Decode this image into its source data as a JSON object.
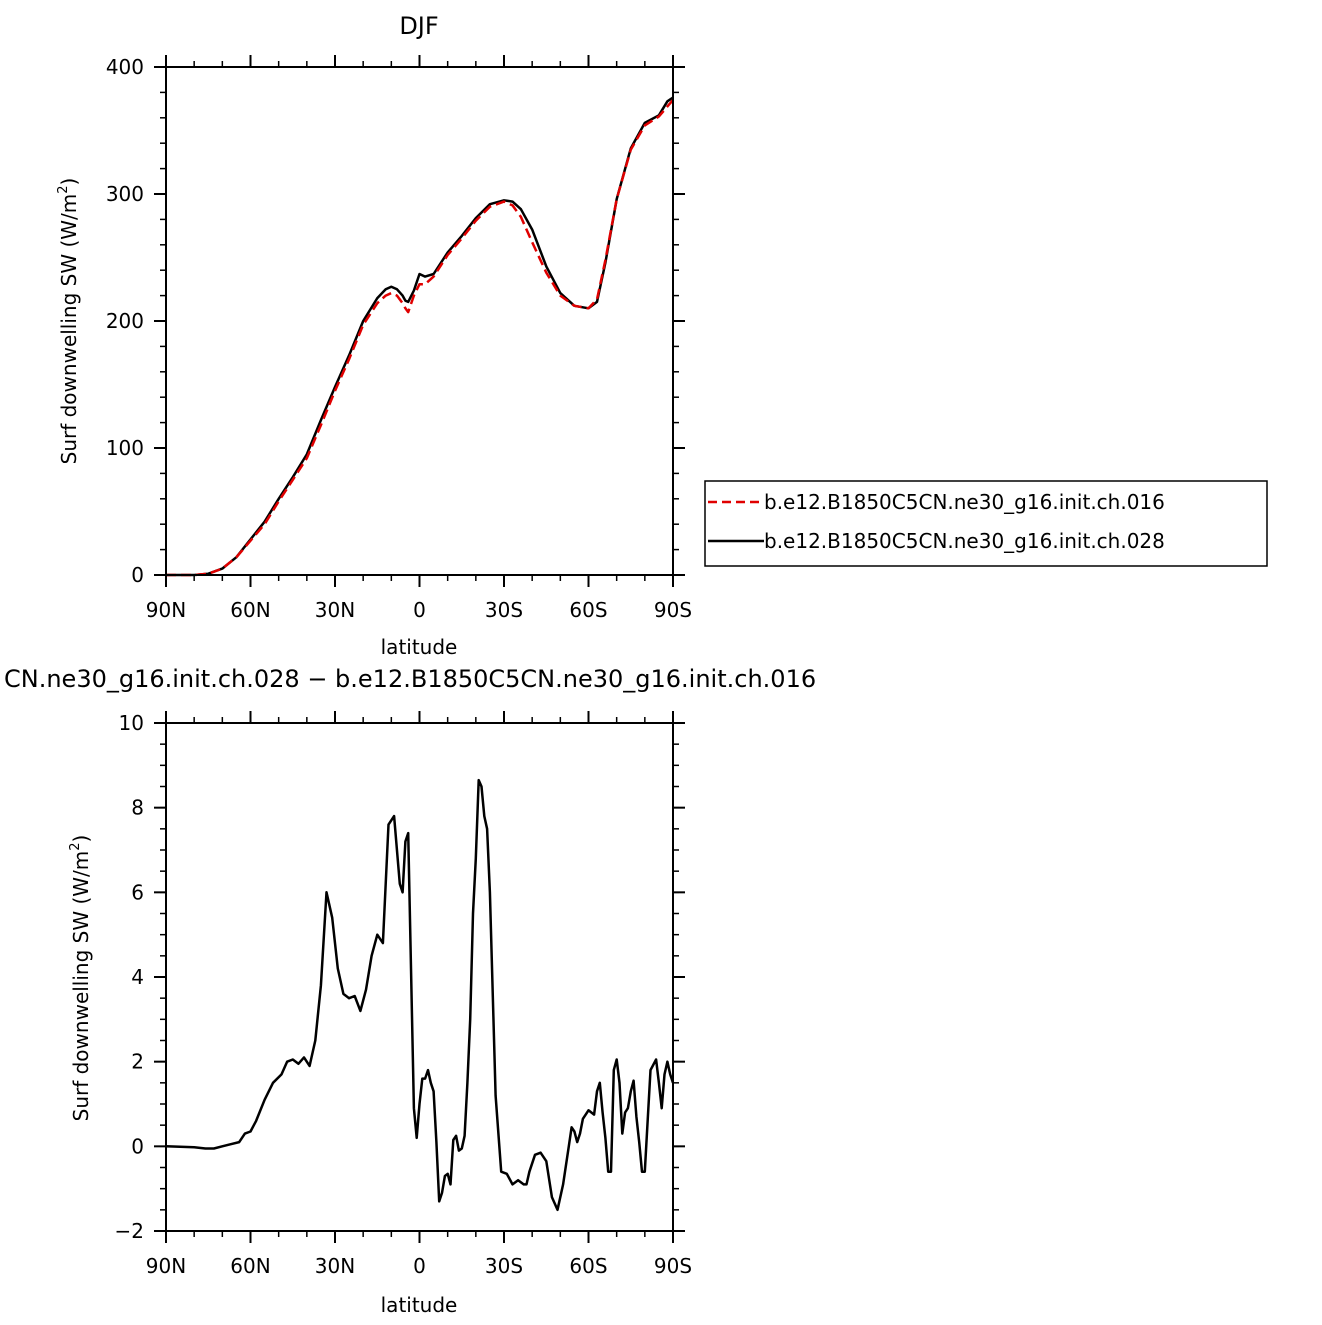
{
  "chart_data": [
    {
      "type": "line",
      "title": "DJF",
      "xlabel": "latitude",
      "ylabel_main": "Surf downwelling SW (W/m",
      "ylabel_sup": "2",
      "ylabel_tail": ")",
      "xticks": [
        {
          "lat": 90,
          "label": "90N"
        },
        {
          "lat": 60,
          "label": "60N"
        },
        {
          "lat": 30,
          "label": "30N"
        },
        {
          "lat": 0,
          "label": "0"
        },
        {
          "lat": -30,
          "label": "30S"
        },
        {
          "lat": -60,
          "label": "60S"
        },
        {
          "lat": -90,
          "label": "90S"
        }
      ],
      "xlim": [
        90,
        -90
      ],
      "ylim": [
        0,
        400
      ],
      "yticks": [
        0,
        100,
        200,
        300,
        400
      ],
      "legend_position": "right",
      "series": [
        {
          "name": "b.e12.B1850C5CN.ne30_g16.init.ch.016",
          "color": "#e00000",
          "dash": "dashed",
          "x": [
            90,
            85,
            80,
            75,
            70,
            65,
            60,
            55,
            50,
            45,
            40,
            35,
            30,
            25,
            20,
            15,
            12,
            10,
            8,
            6,
            5,
            4,
            2,
            0,
            -2,
            -5,
            -10,
            -15,
            -20,
            -25,
            -30,
            -33,
            -36,
            -40,
            -45,
            -50,
            -55,
            -60,
            -63,
            -66,
            -70,
            -75,
            -80,
            -85,
            -88,
            -90
          ],
          "y": [
            0,
            0,
            0,
            1,
            5,
            14,
            27,
            40,
            58,
            75,
            92,
            118,
            145,
            170,
            197,
            214,
            220,
            222,
            220,
            214,
            210,
            207,
            220,
            229,
            229,
            235,
            252,
            265,
            279,
            290,
            294,
            291,
            282,
            262,
            238,
            220,
            212,
            210,
            217,
            248,
            296,
            335,
            354,
            361,
            369,
            374
          ]
        },
        {
          "name": "b.e12.B1850C5CN.ne30_g16.init.ch.028",
          "color": "#000000",
          "dash": "solid",
          "x": [
            90,
            85,
            80,
            75,
            70,
            65,
            60,
            55,
            50,
            45,
            40,
            35,
            30,
            25,
            20,
            15,
            12,
            10,
            8,
            6,
            5,
            4,
            2,
            0,
            -2,
            -5,
            -10,
            -15,
            -20,
            -25,
            -30,
            -33,
            -36,
            -40,
            -45,
            -50,
            -55,
            -60,
            -63,
            -66,
            -70,
            -75,
            -80,
            -85,
            -88,
            -90
          ],
          "y": [
            0,
            0,
            0,
            1,
            5,
            14,
            28,
            42,
            60,
            77,
            95,
            122,
            148,
            173,
            200,
            218,
            225,
            227,
            225,
            220,
            216,
            215,
            224,
            237,
            235,
            237,
            254,
            267,
            281,
            292,
            295,
            294,
            288,
            272,
            243,
            222,
            212,
            210,
            215,
            246,
            296,
            336,
            356,
            362,
            373,
            376
          ]
        }
      ]
    },
    {
      "type": "line",
      "title": "CN.ne30_g16.init.ch.028 − b.e12.B1850C5CN.ne30_g16.init.ch.016",
      "xlabel": "latitude",
      "ylabel_main": "Surf downwelling SW (W/m",
      "ylabel_sup": "2",
      "ylabel_tail": ")",
      "xticks": [
        {
          "lat": 90,
          "label": "90N"
        },
        {
          "lat": 60,
          "label": "60N"
        },
        {
          "lat": 30,
          "label": "30N"
        },
        {
          "lat": 0,
          "label": "0"
        },
        {
          "lat": -30,
          "label": "30S"
        },
        {
          "lat": -60,
          "label": "60S"
        },
        {
          "lat": -90,
          "label": "90S"
        }
      ],
      "xlim": [
        90,
        -90
      ],
      "ylim": [
        -2,
        10
      ],
      "yticks": [
        -2,
        0,
        2,
        4,
        6,
        8,
        10
      ],
      "series": [
        {
          "name": "",
          "color": "#000000",
          "dash": "solid",
          "x": [
            90,
            80,
            76,
            73,
            70,
            67,
            64,
            62,
            60,
            58,
            55,
            52,
            49,
            47,
            45,
            43,
            41,
            39,
            37,
            35,
            33,
            31,
            29,
            27,
            25,
            23,
            21,
            19,
            17,
            15,
            13,
            11,
            9,
            7,
            6,
            5,
            4,
            2,
            1,
            0,
            -1,
            -2,
            -3,
            -4,
            -5,
            -6,
            -7,
            -8,
            -9,
            -10,
            -11,
            -12,
            -13,
            -14,
            -15,
            -16,
            -17,
            -18,
            -19,
            -20,
            -21,
            -22,
            -23,
            -24,
            -25,
            -27,
            -29,
            -31,
            -33,
            -35,
            -37,
            -38,
            -39,
            -41,
            -43,
            -45,
            -47,
            -49,
            -51,
            -53,
            -54,
            -55,
            -56,
            -57,
            -58,
            -60,
            -62,
            -63,
            -64,
            -65,
            -66,
            -67,
            -68,
            -69,
            -70,
            -71,
            -72,
            -73,
            -74,
            -75,
            -76,
            -77,
            -78,
            -79,
            -80,
            -82,
            -84,
            -85,
            -86,
            -87,
            -88,
            -89,
            -90
          ],
          "y": [
            0,
            -0.02,
            -0.05,
            -0.05,
            0,
            0.05,
            0.1,
            0.3,
            0.35,
            0.6,
            1.1,
            1.5,
            1.7,
            2.0,
            2.05,
            1.95,
            2.1,
            1.9,
            2.5,
            3.8,
            6.0,
            5.4,
            4.2,
            3.6,
            3.5,
            3.55,
            3.2,
            3.7,
            4.5,
            5.0,
            4.8,
            7.6,
            7.8,
            6.2,
            6.0,
            7.2,
            7.4,
            0.9,
            0.2,
            1.0,
            1.6,
            1.6,
            1.8,
            1.5,
            1.3,
            0.1,
            -1.3,
            -1.1,
            -0.7,
            -0.65,
            -0.9,
            0.15,
            0.25,
            -0.1,
            -0.05,
            0.25,
            1.5,
            3.0,
            5.5,
            6.8,
            8.65,
            8.5,
            7.8,
            7.5,
            6.0,
            1.2,
            -0.6,
            -0.65,
            -0.9,
            -0.8,
            -0.9,
            -0.9,
            -0.6,
            -0.2,
            -0.15,
            -0.35,
            -1.2,
            -1.5,
            -0.9,
            0.0,
            0.45,
            0.35,
            0.1,
            0.3,
            0.65,
            0.85,
            0.75,
            1.3,
            1.5,
            0.8,
            0.2,
            -0.6,
            -0.6,
            1.8,
            2.05,
            1.5,
            0.3,
            0.8,
            0.9,
            1.3,
            1.55,
            0.7,
            0.1,
            -0.6,
            -0.6,
            1.8,
            2.05,
            1.5,
            0.9,
            1.7,
            2.0,
            1.7,
            1.5
          ]
        }
      ]
    }
  ]
}
